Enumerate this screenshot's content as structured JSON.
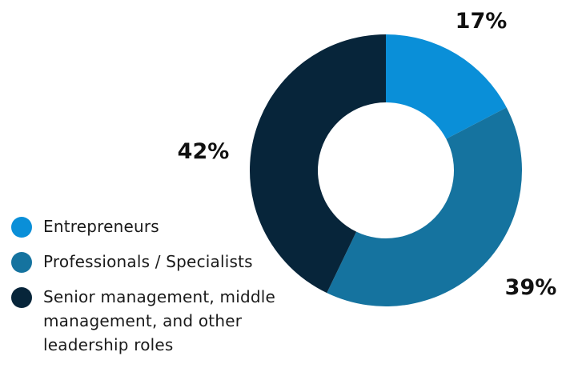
{
  "chart_data": {
    "type": "pie",
    "donut": true,
    "categories": [
      "Entrepreneurs",
      "Professionals / Specialists",
      "Senior management, middle management, and other leadership roles"
    ],
    "values": [
      17,
      39,
      42
    ],
    "value_labels": [
      "17%",
      "39%",
      "42%"
    ],
    "colors": [
      "#0a8fd8",
      "#15739f",
      "#07253a"
    ],
    "legend_placement": "bottom-left",
    "title": ""
  }
}
